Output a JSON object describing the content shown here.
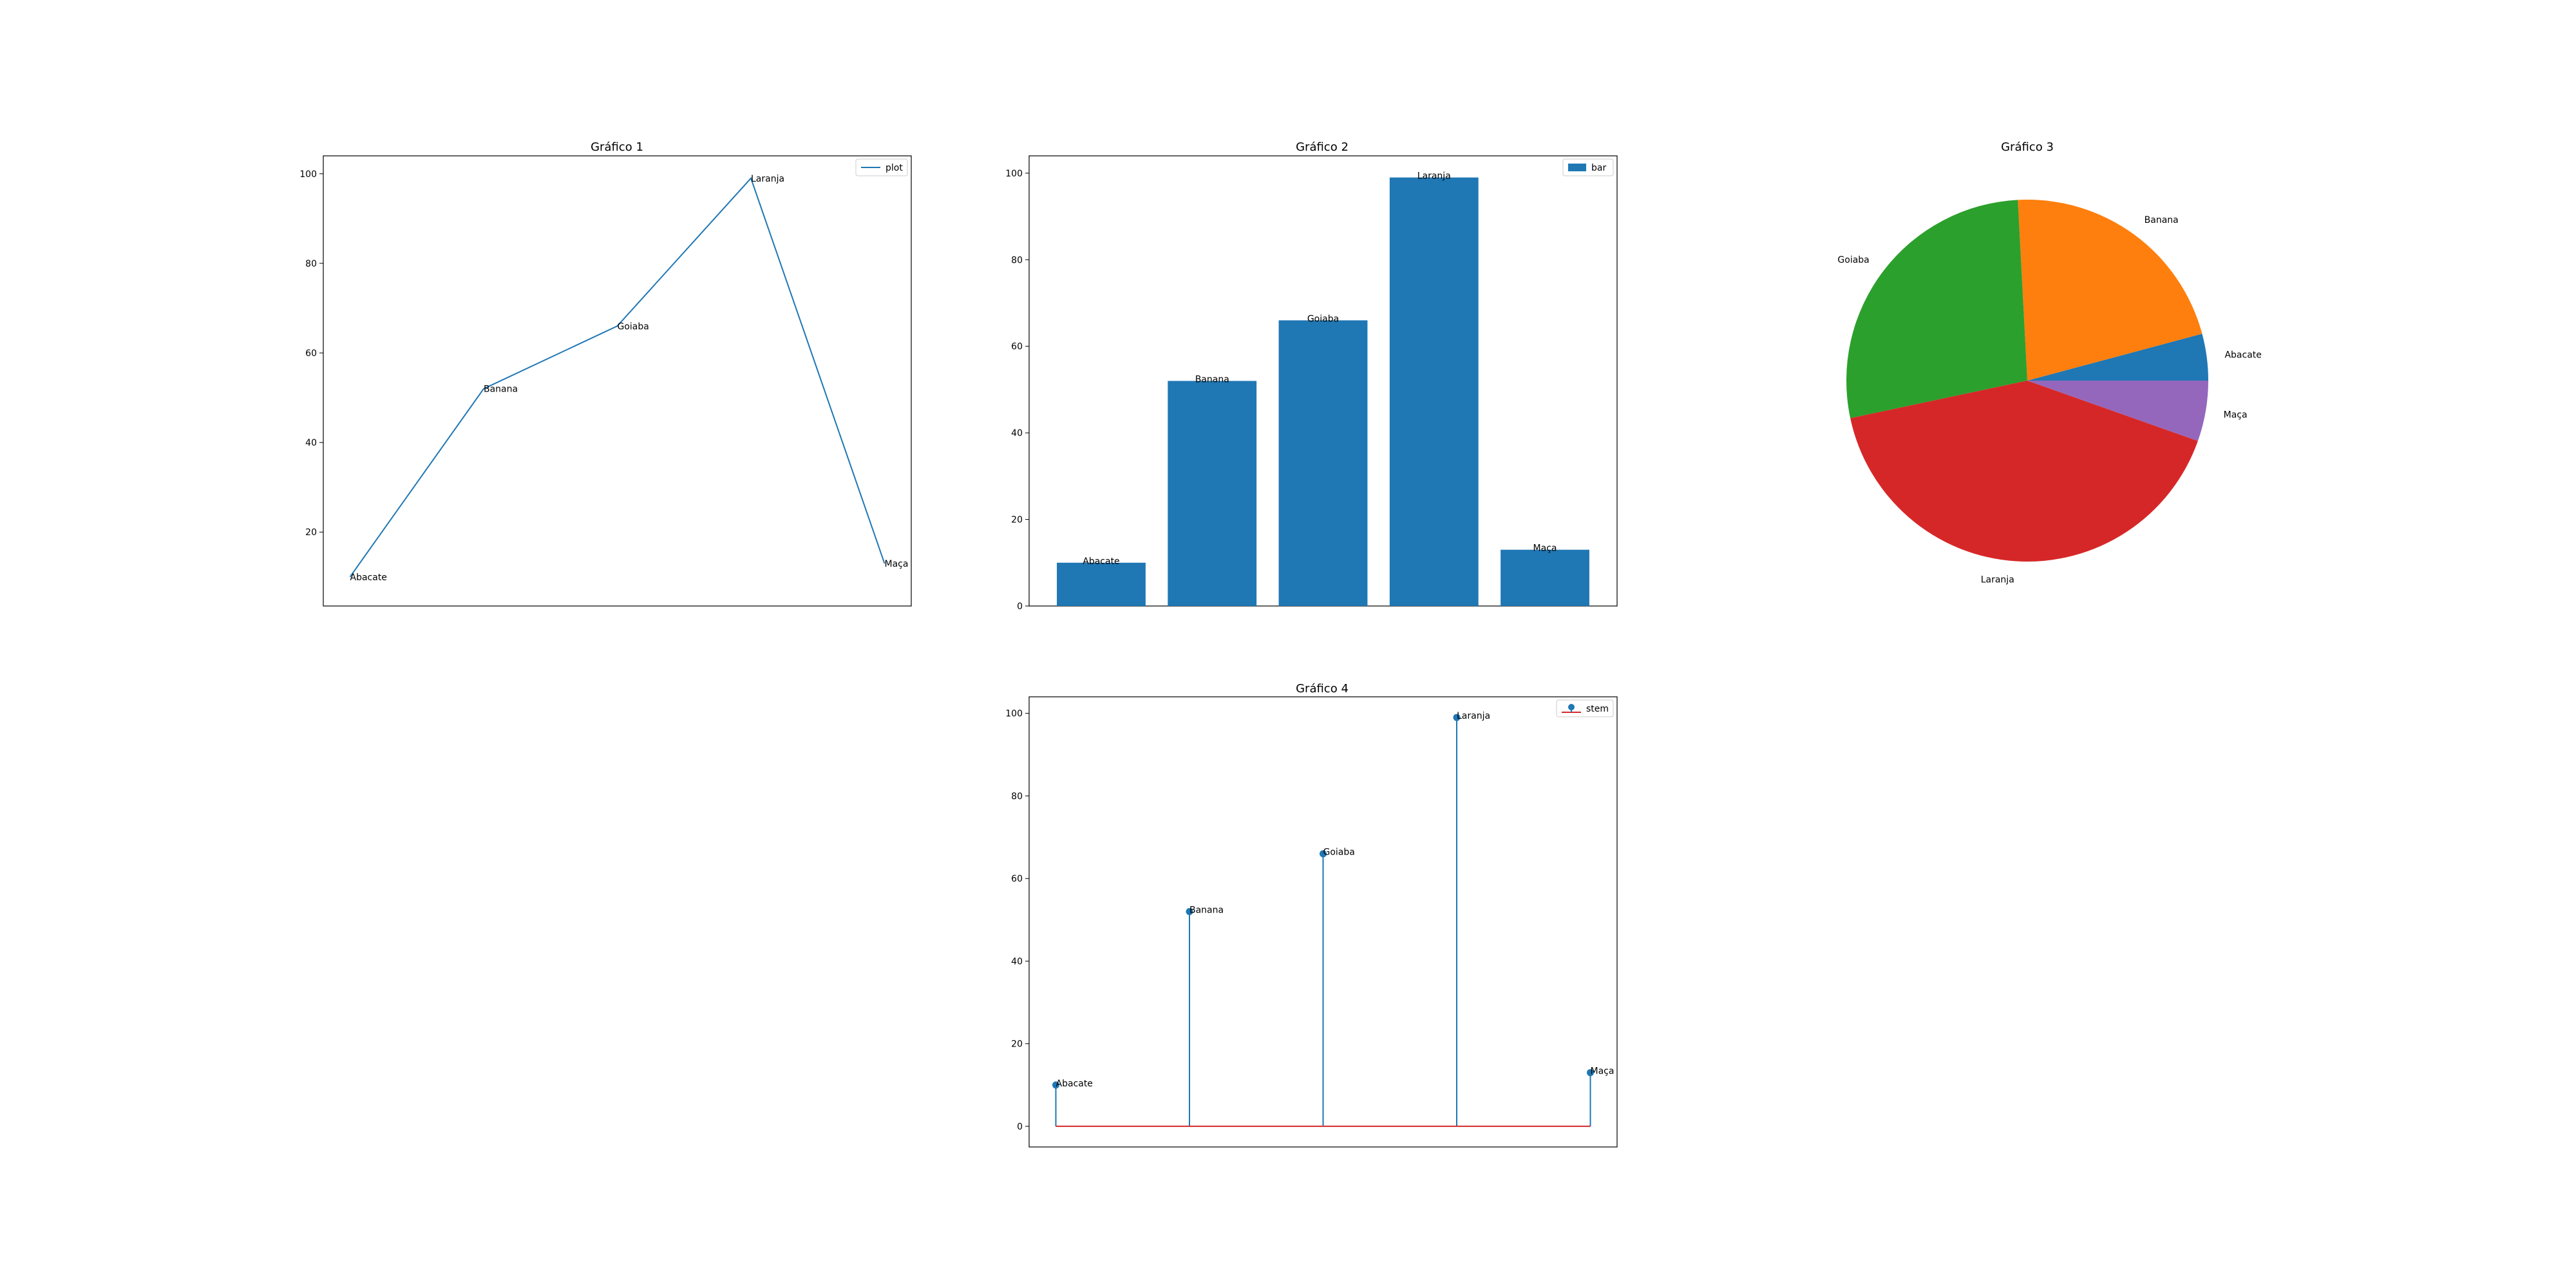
{
  "chart_data": [
    {
      "type": "line",
      "title": "Gráfico 1",
      "categories": [
        "Abacate",
        "Banana",
        "Goiaba",
        "Laranja",
        "Maça"
      ],
      "values": [
        10,
        52,
        66,
        99,
        13
      ],
      "yticks": [
        20,
        40,
        60,
        80,
        100
      ],
      "ylim": [
        3.5,
        104
      ],
      "legend": "plot",
      "legend_position": "upper right",
      "color": "#1f77b4",
      "grid": false
    },
    {
      "type": "bar",
      "title": "Gráfico 2",
      "categories": [
        "Abacate",
        "Banana",
        "Goiaba",
        "Laranja",
        "Maça"
      ],
      "values": [
        10,
        52,
        66,
        99,
        13
      ],
      "yticks": [
        0,
        20,
        40,
        60,
        80,
        100
      ],
      "ylim": [
        0,
        104
      ],
      "legend": "bar",
      "legend_position": "upper right",
      "color": "#1f77b4",
      "grid": false
    },
    {
      "type": "pie",
      "title": "Gráfico 3",
      "categories": [
        "Abacate",
        "Banana",
        "Goiaba",
        "Laranja",
        "Maça"
      ],
      "values": [
        10,
        52,
        66,
        99,
        13
      ],
      "colors": [
        "#1f77b4",
        "#ff7f0e",
        "#2ca02c",
        "#d62728",
        "#9467bd"
      ]
    },
    {
      "type": "stem",
      "title": "Gráfico 4",
      "categories": [
        "Abacate",
        "Banana",
        "Goiaba",
        "Laranja",
        "Maça"
      ],
      "values": [
        10,
        52,
        66,
        99,
        13
      ],
      "yticks": [
        0,
        20,
        40,
        60,
        80,
        100
      ],
      "ylim": [
        -5,
        104
      ],
      "legend": "stem",
      "legend_position": "upper right",
      "color": "#1f77b4",
      "baseline_color": "#d62728",
      "grid": false
    }
  ]
}
